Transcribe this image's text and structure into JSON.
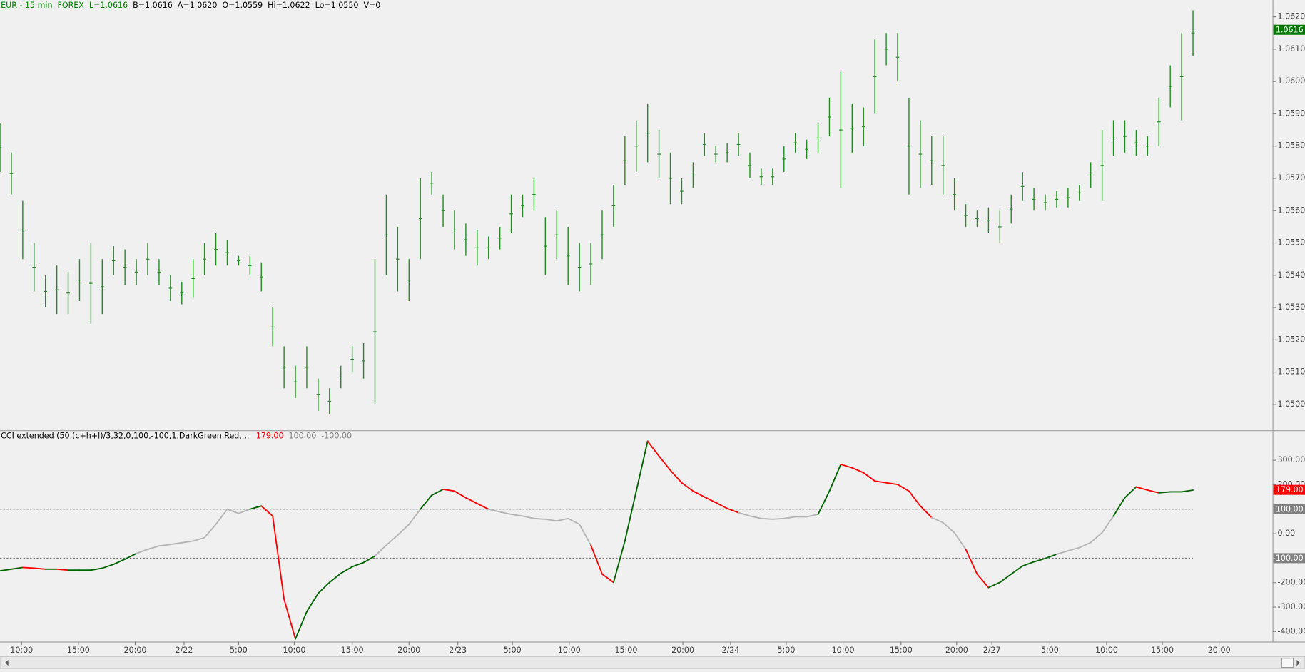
{
  "chart_data": [
    {
      "type": "ohlc",
      "header": [
        {
          "text": "EUR - 15 min",
          "color": "#008000"
        },
        {
          "text": "FOREX",
          "color": "#008000"
        },
        {
          "text": "L=1.0616",
          "color": "#008000"
        },
        {
          "text": "B=1.0616",
          "color": "#000000"
        },
        {
          "text": "A=1.0620",
          "color": "#000000"
        },
        {
          "text": "O=1.0559",
          "color": "#000000"
        },
        {
          "text": "Hi=1.0622",
          "color": "#000000"
        },
        {
          "text": "Lo=1.0550",
          "color": "#000000"
        },
        {
          "text": "V=0",
          "color": "#000000"
        }
      ],
      "color": "#228b22",
      "x": [
        0,
        1,
        2,
        3,
        4,
        5,
        6,
        7,
        8,
        9,
        10,
        11,
        12,
        13,
        14,
        15,
        16,
        17,
        18,
        19,
        20,
        21,
        22,
        23,
        24,
        25,
        26,
        27,
        28,
        29,
        30,
        31,
        32,
        33,
        34,
        35,
        36,
        37,
        38,
        39,
        40,
        41,
        42,
        43,
        44,
        45,
        46,
        47,
        48,
        49,
        50,
        51,
        52,
        53,
        54,
        55,
        56,
        57,
        58,
        59,
        60,
        61,
        62,
        63,
        64,
        65,
        66,
        67,
        68,
        69,
        70,
        71,
        72,
        73,
        74,
        75,
        76,
        77,
        78,
        79,
        80,
        81,
        82,
        83,
        84,
        85,
        86,
        87,
        88,
        89,
        90,
        91,
        92,
        93,
        94,
        95,
        96,
        97,
        98,
        99,
        100,
        101,
        102,
        103,
        104,
        105
      ],
      "high": [
        1.0587,
        1.0578,
        1.0563,
        1.055,
        1.054,
        1.0543,
        1.0541,
        1.0545,
        1.055,
        1.0545,
        1.0549,
        1.0548,
        1.0545,
        1.055,
        1.0545,
        1.054,
        1.0538,
        1.0545,
        1.055,
        1.0553,
        1.0551,
        1.0546,
        1.0546,
        1.0544,
        1.053,
        1.0518,
        1.0512,
        1.0518,
        1.0508,
        1.0505,
        1.0512,
        1.0518,
        1.0519,
        1.0545,
        1.0565,
        1.0555,
        1.0545,
        1.057,
        1.0572,
        1.0565,
        1.056,
        1.0556,
        1.0554,
        1.0552,
        1.0555,
        1.0565,
        1.0565,
        1.057,
        1.0558,
        1.056,
        1.0555,
        1.055,
        1.055,
        1.056,
        1.0568,
        1.0583,
        1.0588,
        1.0593,
        1.0585,
        1.0578,
        1.057,
        1.0575,
        1.0584,
        1.058,
        1.0581,
        1.0584,
        1.0578,
        1.0573,
        1.0573,
        1.058,
        1.0584,
        1.0582,
        1.0587,
        1.0595,
        1.0603,
        1.0593,
        1.0592,
        1.0613,
        1.0615,
        1.0615,
        1.0595,
        1.0588,
        1.0583,
        1.0583,
        1.057,
        1.0562,
        1.056,
        1.0561,
        1.056,
        1.0565,
        1.0572,
        1.0567,
        1.0565,
        1.0566,
        1.0567,
        1.0568,
        1.0575,
        1.0585,
        1.0588,
        1.0588,
        1.0585,
        1.0583,
        1.0595,
        1.0605,
        1.0615,
        1.0622
      ],
      "low": [
        1.0572,
        1.0565,
        1.0545,
        1.0535,
        1.053,
        1.0528,
        1.0528,
        1.0532,
        1.0525,
        1.0528,
        1.054,
        1.0537,
        1.0537,
        1.054,
        1.0537,
        1.0532,
        1.0531,
        1.0533,
        1.054,
        1.0543,
        1.0543,
        1.0543,
        1.054,
        1.0535,
        1.0518,
        1.0505,
        1.0502,
        1.0505,
        1.0498,
        1.0497,
        1.0505,
        1.051,
        1.0508,
        1.05,
        1.054,
        1.0535,
        1.0532,
        1.0545,
        1.0565,
        1.0555,
        1.0548,
        1.0546,
        1.0543,
        1.0545,
        1.0548,
        1.0553,
        1.0558,
        1.056,
        1.054,
        1.0545,
        1.0537,
        1.0535,
        1.0537,
        1.0545,
        1.0555,
        1.0568,
        1.0572,
        1.0575,
        1.057,
        1.0562,
        1.0562,
        1.0567,
        1.0577,
        1.0575,
        1.0575,
        1.0577,
        1.057,
        1.0568,
        1.0568,
        1.0572,
        1.0578,
        1.0576,
        1.0578,
        1.0583,
        1.0567,
        1.0578,
        1.058,
        1.059,
        1.0605,
        1.06,
        1.0565,
        1.0567,
        1.0568,
        1.0565,
        1.056,
        1.0555,
        1.0555,
        1.0553,
        1.055,
        1.0556,
        1.0563,
        1.056,
        1.056,
        1.0561,
        1.0561,
        1.0563,
        1.0567,
        1.0563,
        1.0577,
        1.0578,
        1.0577,
        1.0577,
        1.058,
        1.0592,
        1.0588,
        1.0608
      ],
      "last": {
        "value": 1.0616,
        "label": "1.0616"
      },
      "last_color": "#007800",
      "xlim": [
        0,
        112
      ],
      "ylim": [
        1.0492,
        1.06252
      ],
      "yticks": [
        {
          "value": 1.05,
          "label": "1.0500"
        },
        {
          "value": 1.051,
          "label": "1.0510"
        },
        {
          "value": 1.052,
          "label": "1.0520"
        },
        {
          "value": 1.053,
          "label": "1.0530"
        },
        {
          "value": 1.054,
          "label": "1.0540"
        },
        {
          "value": 1.055,
          "label": "1.0550"
        },
        {
          "value": 1.056,
          "label": "1.0560"
        },
        {
          "value": 1.057,
          "label": "1.0570"
        },
        {
          "value": 1.058,
          "label": "1.0580"
        },
        {
          "value": 1.059,
          "label": "1.0590"
        },
        {
          "value": 1.06,
          "label": "1.0600"
        },
        {
          "value": 1.061,
          "label": "1.0610"
        },
        {
          "value": 1.062,
          "label": "1.0620"
        }
      ]
    },
    {
      "type": "line",
      "title": "CCI extended (50,(c+h+l)/3,32,0,100,-100,1,DarkGreen,Red,...",
      "colors": {
        "rising": "#006400",
        "falling": "#ff0000",
        "neutral": "#b4b4b4"
      },
      "x": [
        0,
        1,
        2,
        3,
        4,
        5,
        6,
        7,
        8,
        9,
        10,
        11,
        12,
        13,
        14,
        15,
        16,
        17,
        18,
        19,
        20,
        21,
        22,
        23,
        24,
        25,
        26,
        27,
        28,
        29,
        30,
        31,
        32,
        33,
        34,
        35,
        36,
        37,
        38,
        39,
        40,
        41,
        42,
        43,
        44,
        45,
        46,
        47,
        48,
        49,
        50,
        51,
        52,
        53,
        54,
        55,
        56,
        57,
        58,
        59,
        60,
        61,
        62,
        63,
        64,
        65,
        66,
        67,
        68,
        69,
        70,
        71,
        72,
        73,
        74,
        75,
        76,
        77,
        78,
        79,
        80,
        81,
        82,
        83,
        84,
        85,
        86,
        87,
        88,
        89,
        90,
        91,
        92,
        93,
        94,
        95,
        96,
        97,
        98,
        99,
        100,
        101,
        102,
        103,
        104,
        105
      ],
      "values": [
        -152,
        -145,
        -138,
        -141,
        -145,
        -145,
        -149,
        -149,
        -149,
        -141,
        -125,
        -104,
        -81,
        -64,
        -50,
        -44,
        -37,
        -30,
        -16,
        38,
        100,
        83,
        100,
        113,
        72,
        -267,
        -430,
        -318,
        -244,
        -199,
        -162,
        -135,
        -118,
        -91,
        -47,
        -6,
        38,
        100,
        157,
        181,
        174,
        147,
        123,
        100,
        89,
        79,
        72,
        62,
        59,
        52,
        62,
        38,
        -47,
        -165,
        -199,
        -30,
        174,
        378,
        317,
        259,
        208,
        174,
        150,
        127,
        103,
        86,
        72,
        62,
        59,
        62,
        69,
        69,
        79,
        174,
        283,
        269,
        249,
        215,
        208,
        201,
        174,
        113,
        66,
        45,
        4,
        -64,
        -165,
        -220,
        -199,
        -165,
        -132,
        -115,
        -101,
        -84,
        -70,
        -57,
        -36,
        4,
        72,
        147,
        191,
        178,
        167,
        171,
        171,
        178
      ],
      "last": {
        "value": 179,
        "label": "179.00"
      },
      "levels": [
        {
          "value": 100,
          "label": "100.00"
        },
        {
          "value": -100,
          "label": "-100.00"
        }
      ],
      "xlim": [
        0,
        112
      ],
      "ylim": [
        -441,
        419
      ],
      "yticks": [
        {
          "value": 300,
          "label": "300.00"
        },
        {
          "value": 200,
          "label": "200.00"
        },
        {
          "value": 0,
          "label": "0.00"
        },
        {
          "value": -200,
          "label": "-200.00"
        },
        {
          "value": -300,
          "label": "-300.00"
        },
        {
          "value": -400,
          "label": "-400.00"
        }
      ],
      "xticks": [
        {
          "value": 1.9,
          "label": "10:00"
        },
        {
          "value": 6.9,
          "label": "15:00"
        },
        {
          "value": 11.9,
          "label": "20:00"
        },
        {
          "value": 16.2,
          "label": "2/22"
        },
        {
          "value": 21.0,
          "label": "5:00"
        },
        {
          "value": 25.9,
          "label": "10:00"
        },
        {
          "value": 31.0,
          "label": "15:00"
        },
        {
          "value": 36.0,
          "label": "20:00"
        },
        {
          "value": 40.3,
          "label": "2/23"
        },
        {
          "value": 45.1,
          "label": "5:00"
        },
        {
          "value": 50.1,
          "label": "10:00"
        },
        {
          "value": 55.1,
          "label": "15:00"
        },
        {
          "value": 60.1,
          "label": "20:00"
        },
        {
          "value": 64.3,
          "label": "2/24"
        },
        {
          "value": 69.2,
          "label": "5:00"
        },
        {
          "value": 74.2,
          "label": "10:00"
        },
        {
          "value": 79.3,
          "label": "15:00"
        },
        {
          "value": 84.2,
          "label": "20:00"
        },
        {
          "value": 87.3,
          "label": "2/27"
        },
        {
          "value": 92.4,
          "label": "5:00"
        },
        {
          "value": 97.4,
          "label": "10:00"
        },
        {
          "value": 102.3,
          "label": "15:00"
        },
        {
          "value": 107.3,
          "label": "20:00"
        }
      ]
    }
  ]
}
